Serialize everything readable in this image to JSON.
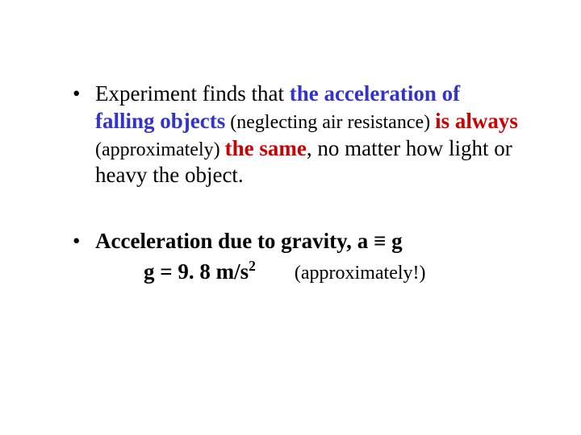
{
  "colors": {
    "background": "#ffffff",
    "text": "#000000",
    "blue": "#3333cc",
    "red": "#cc0000"
  },
  "typography": {
    "font_family": "Times New Roman",
    "body_size_pt": 27,
    "paren_size_pt": 24
  },
  "bullets": [
    {
      "segments": {
        "s0": "Experiment finds that ",
        "s1": "the acceleration of falling objects",
        "s2": " (neglecting air resistance) ",
        "s3": "is always",
        "s4": " (approximately) ",
        "s5": "the same",
        "s6": ", no matter how light or heavy the object."
      }
    },
    {
      "line1": {
        "t0": "Acceleration due to gravity, ",
        "t1": "a",
        "t2": " ≡ ",
        "t3": "g"
      },
      "line2": {
        "formula_prefix": "g = 9. 8 m/s",
        "formula_sup": "2",
        "approx": "(approximately!)"
      }
    }
  ]
}
